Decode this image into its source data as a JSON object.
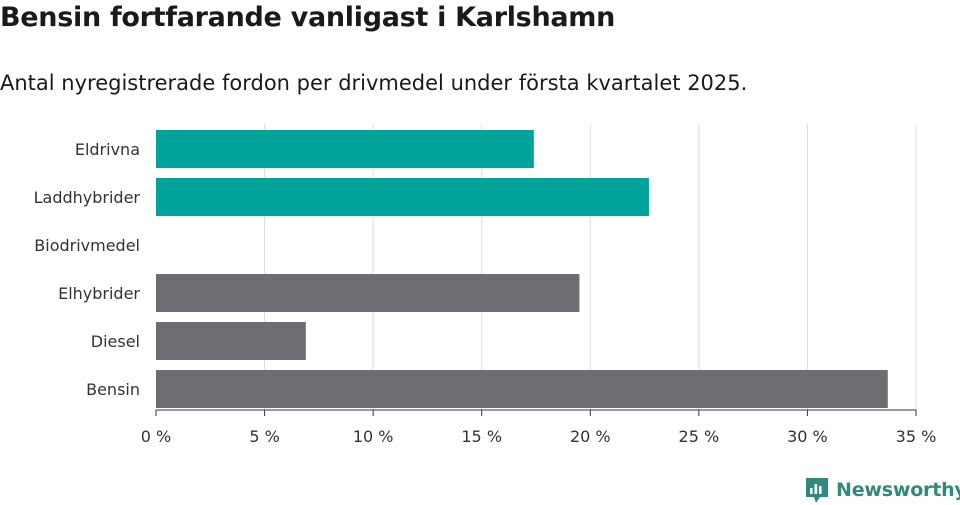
{
  "header": {
    "title": "Bensin fortfarande vanligast i Karlshamn",
    "subtitle": "Antal nyregistrerade fordon per drivmedel under första kvartalet 2025."
  },
  "brand": {
    "name": "Newsworthy",
    "icon": "newsworthy-logo-icon"
  },
  "colors": {
    "highlight": "#00a39a",
    "other": "#6d6d72",
    "grid": "#dcdcdc",
    "axis": "#333333"
  },
  "chart_data": {
    "type": "bar",
    "orientation": "horizontal",
    "categories": [
      "Eldrivna",
      "Laddhybrider",
      "Biodrivmedel",
      "Elhybrider",
      "Diesel",
      "Bensin"
    ],
    "values": [
      17.4,
      22.7,
      0,
      19.5,
      6.9,
      33.7
    ],
    "highlighted": [
      true,
      true,
      false,
      false,
      false,
      false
    ],
    "xlim": [
      0,
      35
    ],
    "xticks": [
      0,
      5,
      10,
      15,
      20,
      25,
      30,
      35
    ],
    "xtick_labels": [
      "0 %",
      "5 %",
      "10 %",
      "15 %",
      "20 %",
      "25 %",
      "30 %",
      "35 %"
    ],
    "grid": true,
    "title": "Bensin fortfarande vanligast i Karlshamn",
    "subtitle": "Antal nyregistrerade fordon per drivmedel under första kvartalet 2025."
  }
}
